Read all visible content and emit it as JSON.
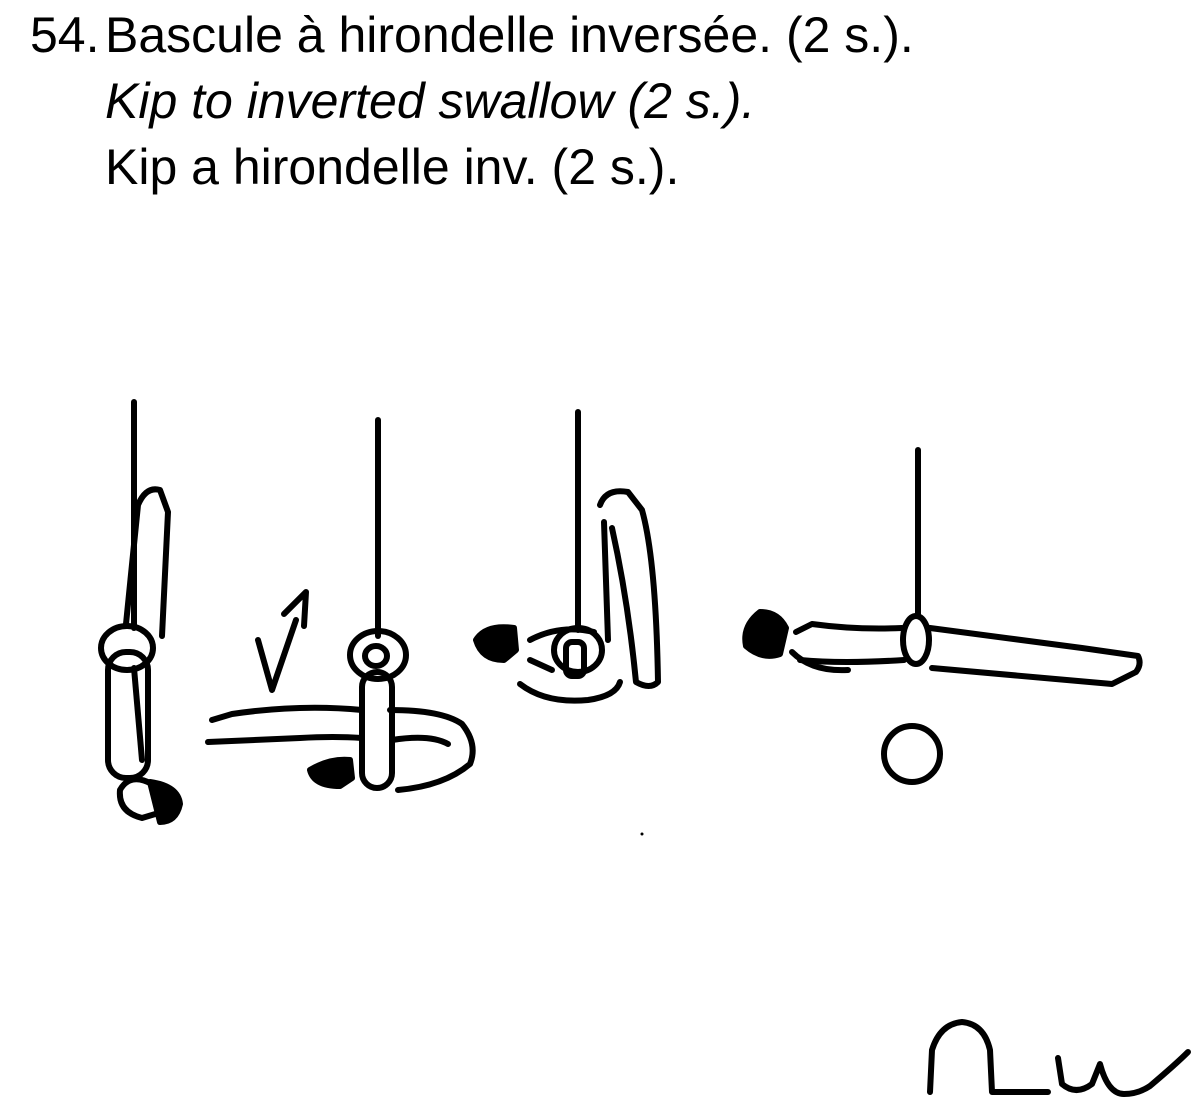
{
  "element": {
    "number": "54.",
    "title_fr": "Bascule à hirondelle inversée. (2 s.).",
    "title_en": "Kip to inverted swallow (2 s.).",
    "title_es": "Kip a hirondelle inv. (2 s.)."
  },
  "colors": {
    "ink": "#000000",
    "paper": "#ffffff"
  },
  "icons": [
    "arrow-icon",
    "circle-symbol-icon",
    "notation-symbol-icon"
  ]
}
